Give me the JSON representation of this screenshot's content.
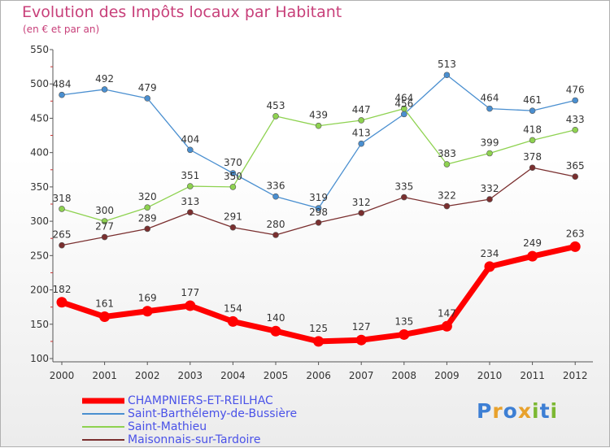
{
  "header": {
    "title": "Evolution des Impôts locaux par Habitant",
    "subtitle": "(en € et par an)"
  },
  "brand": {
    "text": "Proxiti",
    "letters": [
      {
        "ch": "P",
        "color": "#3d7fd4"
      },
      {
        "ch": "r",
        "color": "#e8a12c"
      },
      {
        "ch": "o",
        "color": "#3d7fd4"
      },
      {
        "ch": "x",
        "color": "#e8a12c"
      },
      {
        "ch": "i",
        "color": "#7cb832"
      },
      {
        "ch": "t",
        "color": "#3d7fd4"
      },
      {
        "ch": "i",
        "color": "#7cb832"
      }
    ]
  },
  "chart_data": {
    "type": "line",
    "title": "Evolution des Impôts locaux par Habitant",
    "subtitle": "(en € et par an)",
    "x": [
      "2000",
      "2001",
      "2002",
      "2003",
      "2004",
      "2005",
      "2006",
      "2007",
      "2008",
      "2009",
      "2010",
      "2011",
      "2012"
    ],
    "ylim": [
      100,
      550
    ],
    "yticks": [
      100,
      150,
      200,
      250,
      300,
      350,
      400,
      450,
      500,
      550
    ],
    "grid": false,
    "legend": "bottom-left",
    "series": [
      {
        "name": "CHAMPNIERS-ET-REILHAC",
        "color": "#ff0000",
        "emphasis": true,
        "values": [
          182,
          161,
          169,
          177,
          154,
          140,
          125,
          127,
          135,
          147,
          234,
          249,
          263
        ]
      },
      {
        "name": "Saint-Barthélemy-de-Bussière",
        "color": "#4a8fd0",
        "values": [
          484,
          492,
          479,
          404,
          370,
          336,
          319,
          413,
          456,
          513,
          464,
          461,
          476
        ]
      },
      {
        "name": "Saint-Mathieu",
        "color": "#8ed250",
        "values": [
          318,
          300,
          320,
          351,
          350,
          453,
          439,
          447,
          464,
          383,
          399,
          418,
          433
        ]
      },
      {
        "name": "Maisonnais-sur-Tardoire",
        "color": "#7a2f2f",
        "values": [
          265,
          277,
          289,
          313,
          291,
          280,
          298,
          312,
          335,
          322,
          332,
          378,
          365
        ]
      }
    ]
  }
}
